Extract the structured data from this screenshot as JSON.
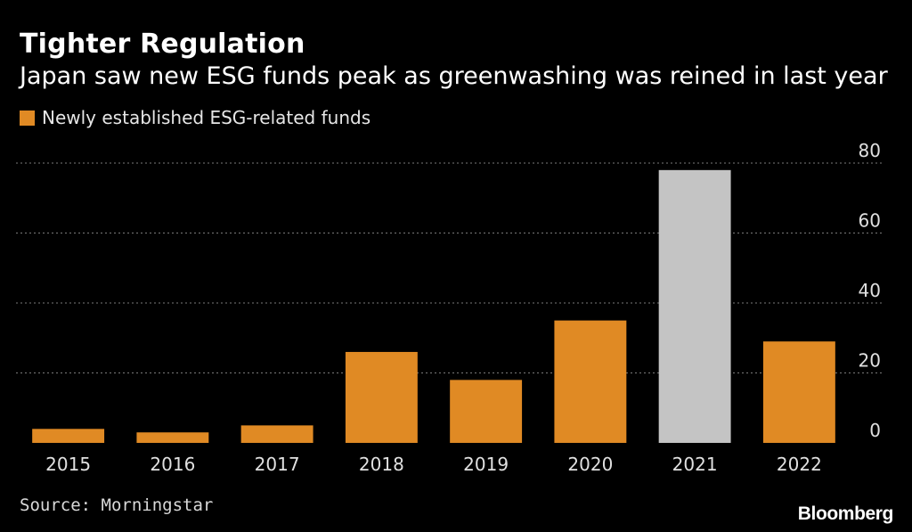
{
  "chart_data": {
    "type": "bar",
    "title": "Tighter Regulation",
    "subtitle": "Japan saw new ESG funds peak as greenwashing was reined in last year",
    "legend": [
      "Newly established ESG-related funds"
    ],
    "categories": [
      "2015",
      "2016",
      "2017",
      "2018",
      "2019",
      "2020",
      "2021",
      "2022"
    ],
    "series": [
      {
        "name": "Newly established ESG-related funds",
        "values": [
          4,
          3,
          5,
          26,
          18,
          35,
          78,
          29
        ]
      }
    ],
    "highlight_category": "2021",
    "ylim": [
      0,
      80
    ],
    "yticks": [
      0,
      20,
      40,
      60,
      80
    ],
    "y_axis_side": "right",
    "xlabel": "",
    "ylabel": "",
    "grid": true,
    "colors": {
      "bar": "#E08A24",
      "highlight": "#C4C4C4",
      "grid": "#7a7a7a",
      "background": "#000000"
    }
  },
  "footer": {
    "source": "Source: Morningstar",
    "brand": "Bloomberg"
  }
}
